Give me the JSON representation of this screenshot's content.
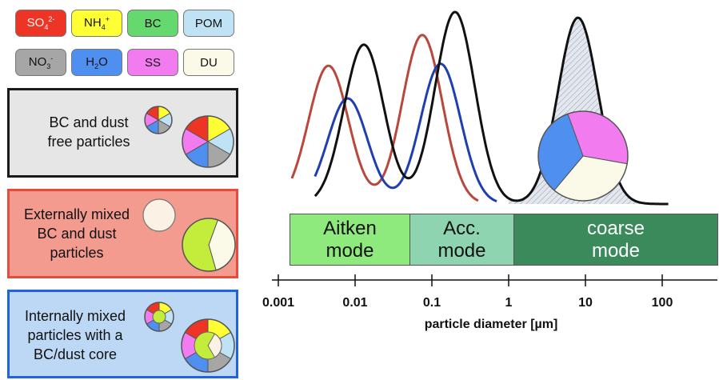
{
  "legend": [
    {
      "id": "so4",
      "base": "SO",
      "sub": "4",
      "sup": "2-",
      "color": "#ee3424",
      "text_color": "#ffffff"
    },
    {
      "id": "nh4",
      "base": "NH",
      "sub": "4",
      "sup": "+",
      "color": "#ffff33",
      "text_color": "#111111"
    },
    {
      "id": "bc",
      "base": "BC",
      "sub": "",
      "sup": "",
      "color": "#66d96e",
      "text_color": "#111111"
    },
    {
      "id": "pom",
      "base": "POM",
      "sub": "",
      "sup": "",
      "color": "#bfe3f5",
      "text_color": "#111111"
    },
    {
      "id": "no3",
      "base": "NO",
      "sub": "3",
      "sup": "-",
      "color": "#a6a6a6",
      "text_color": "#111111"
    },
    {
      "id": "h2o",
      "base": "H",
      "sub": "2",
      "sup": "O",
      "color": "#4f8ff0",
      "text_color": "#111111"
    },
    {
      "id": "ss",
      "base": "SS",
      "sub": "",
      "sup": "",
      "color": "#f27bf0",
      "text_color": "#111111"
    },
    {
      "id": "du",
      "base": "DU",
      "sub": "",
      "sup": "",
      "color": "#fbf9e8",
      "text_color": "#111111"
    }
  ],
  "panels": {
    "bc_dust_free": {
      "line1": "BC and dust",
      "line2": "free particles",
      "fill": "#e6e6e6",
      "border": "#1a1a1a"
    },
    "externally_mixed": {
      "line1": "Externally mixed",
      "line2": "BC and dust",
      "line3": "particles",
      "fill": "#f49b90",
      "border": "#e84a3c"
    },
    "internally_mixed": {
      "line1": "Internally mixed",
      "line2": "particles with a",
      "line3": "BC/dust core",
      "fill": "#bcd8f4",
      "border": "#1f63e0"
    }
  },
  "modes": [
    {
      "label": "Aitken\nmode",
      "fill": "#8eea7c",
      "text_color": "#111111"
    },
    {
      "label": "Acc.\nmode",
      "fill": "#8ed4b0",
      "text_color": "#111111"
    },
    {
      "label": "coarse\nmode",
      "fill": "#3a8a5c",
      "text_color": "#ffffff"
    }
  ],
  "axis": {
    "tick_labels": [
      "0.001",
      "0.01",
      "0.1",
      "1",
      "10",
      "100"
    ],
    "xlabel": "particle diameter [µm]",
    "scale": "log"
  },
  "curves": [
    {
      "id": "red-curve",
      "color": "#b8473c",
      "peaks": [
        {
          "center_um": 0.0045,
          "height": 0.72
        },
        {
          "center_um": 0.075,
          "height": 0.88
        }
      ],
      "range_um": [
        0.0015,
        0.4
      ]
    },
    {
      "id": "blue-curve",
      "color": "#1f3fb0",
      "peaks": [
        {
          "center_um": 0.008,
          "height": 0.55
        },
        {
          "center_um": 0.13,
          "height": 0.73
        }
      ],
      "range_um": [
        0.003,
        0.7
      ]
    },
    {
      "id": "black-curve",
      "color": "#111111",
      "peaks": [
        {
          "center_um": 0.013,
          "height": 0.83
        },
        {
          "center_um": 0.2,
          "height": 1.0
        },
        {
          "center_um": 8,
          "height": 0.97
        }
      ],
      "range_um": [
        0.003,
        120
      ]
    }
  ]
}
